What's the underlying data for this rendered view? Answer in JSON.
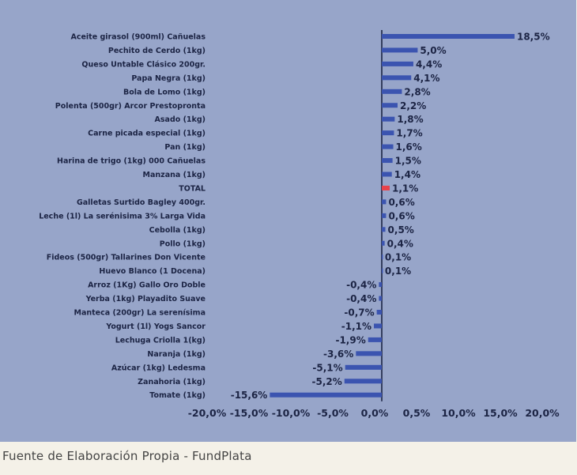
{
  "chart_data": {
    "type": "bar",
    "orientation": "horizontal",
    "categories": [
      "Aceite girasol (900ml) Cañuelas",
      "Pechito de Cerdo (1kg)",
      "Queso Untable Clásico 200gr.",
      "Papa Negra (1kg)",
      "Bola de Lomo (1kg)",
      "Polenta (500gr) Arcor Prestopronta",
      "Asado (1kg)",
      "Carne picada especial (1kg)",
      "Pan (1kg)",
      "Harina de trigo (1kg) 000 Cañuelas",
      "Manzana (1kg)",
      "TOTAL",
      "Galletas Surtido Bagley 400gr.",
      "Leche (1l) La serénisima 3% Larga Vida",
      "Cebolla (1kg)",
      "Pollo (1kg)",
      "Fideos (500gr) Tallarines Don Vicente",
      "Huevo Blanco (1 Docena)",
      "Arroz (1Kg) Gallo Oro Doble",
      "Yerba (1kg) Playadito Suave",
      "Manteca (200gr) La serenísima",
      "Yogurt (1l) Yogs Sancor",
      "Lechuga Criolla 1(kg)",
      "Naranja (1kg)",
      "Azúcar (1kg) Ledesma",
      "Zanahoria (1kg)",
      "Tomate (1kg)"
    ],
    "values": [
      18.5,
      5.0,
      4.4,
      4.1,
      2.8,
      2.2,
      1.8,
      1.7,
      1.6,
      1.5,
      1.4,
      1.1,
      0.6,
      0.6,
      0.5,
      0.4,
      0.1,
      0.1,
      -0.4,
      -0.4,
      -0.7,
      -1.1,
      -1.9,
      -3.6,
      -5.1,
      -5.2,
      -15.6
    ],
    "value_labels": [
      "18,5%",
      "5,0%",
      "4,4%",
      "4,1%",
      "2,8%",
      "2,2%",
      "1,8%",
      "1,7%",
      "1,6%",
      "1,5%",
      "1,4%",
      "1,1%",
      "0,6%",
      "0,6%",
      "0,5%",
      "0,4%",
      "0,1%",
      "0,1%",
      "-0,4%",
      "-0,4%",
      "-0,7%",
      "-1,1%",
      "-1,9%",
      "-3,6%",
      "-5,1%",
      "-5,2%",
      "-15,6%"
    ],
    "x_ticks": [
      -20,
      -15,
      -10,
      -5,
      0,
      0.5,
      10,
      15,
      20
    ],
    "x_tick_labels": [
      "-20,0%",
      "-15,0%",
      "-10,0%",
      "-5,0%",
      "0,0%",
      "0,5%",
      "10,0%",
      "15,0%",
      "20,0%"
    ],
    "xlim": [
      -20,
      20
    ],
    "grid": false,
    "bar_color": "#3b54b0",
    "highlight_category": "TOTAL",
    "highlight_color": "#e8424a",
    "axis_color": "#1c2444",
    "background_color": "#97a5c9"
  },
  "source_note": "Fuente de Elaboración Propia - FundPlata"
}
